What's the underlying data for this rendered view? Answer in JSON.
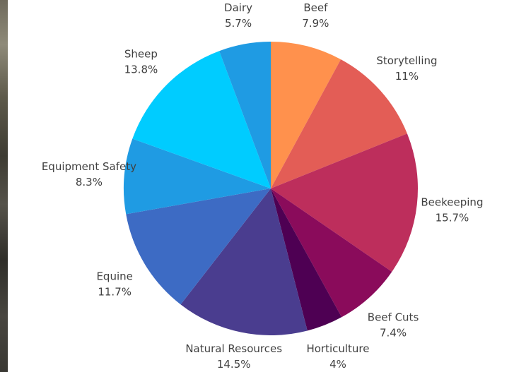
{
  "chart_data": {
    "type": "pie",
    "start_angle_deg": 0,
    "direction": "clockwise",
    "slices": [
      {
        "label": "Beef",
        "value": 7.9,
        "display": "7.9%",
        "color": "#FF914D"
      },
      {
        "label": "Storytelling",
        "value": 11,
        "display": "11%",
        "color": "#E35D56"
      },
      {
        "label": "Beekeeping",
        "value": 15.7,
        "display": "15.7%",
        "color": "#BD2E5C"
      },
      {
        "label": "Beef Cuts",
        "value": 7.4,
        "display": "7.4%",
        "color": "#8A0B5B"
      },
      {
        "label": "Horticulture",
        "value": 4,
        "display": "4%",
        "color": "#4E0053"
      },
      {
        "label": "Natural Resources",
        "value": 14.5,
        "display": "14.5%",
        "color": "#4A3D8F"
      },
      {
        "label": "Equine",
        "value": 11.7,
        "display": "11.7%",
        "color": "#3D6BC4"
      },
      {
        "label": "Equipment Safety",
        "value": 8.3,
        "display": "8.3%",
        "color": "#1F9BE3"
      },
      {
        "label": "Sheep",
        "value": 13.8,
        "display": "13.8%",
        "color": "#00CCFF"
      },
      {
        "label": "Dairy",
        "value": 5.7,
        "display": "5.7%",
        "color": "#1F9BE3"
      }
    ]
  }
}
